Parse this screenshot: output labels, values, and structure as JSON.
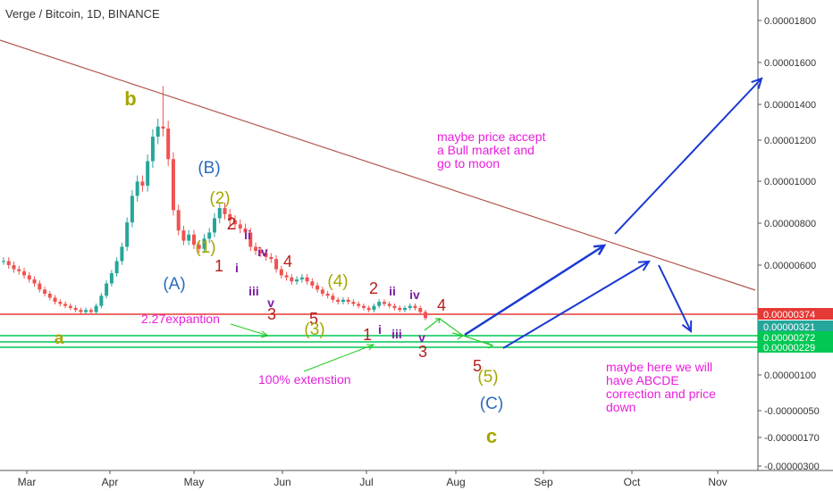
{
  "header": {
    "symbol": "Verge / Bitcoin",
    "interval": "1D",
    "exchange": "BINANCE"
  },
  "chart_data": {
    "type": "candlestick",
    "series_name": "Verge / Bitcoin",
    "x_ticks": [
      "Mar",
      "Apr",
      "May",
      "Jun",
      "Jul",
      "Aug",
      "Sep",
      "Oct",
      "Nov"
    ],
    "y_ticks": [
      "0.00001800",
      "0.00001600",
      "0.00001400",
      "0.00001200",
      "0.00001000",
      "0.00000800",
      "0.00000600",
      "0.00000100",
      "-0.00000050",
      "-0.00000170",
      "-0.00000300"
    ],
    "y_ticks_values": [
      1.8e-05,
      1.6e-05,
      1.4e-05,
      1.2e-05,
      1e-05,
      8e-06,
      6e-06,
      1e-06,
      -5e-07,
      -1.7e-06,
      -3e-06
    ],
    "price_tags": [
      {
        "label": "0.00000374",
        "color": "#e53935"
      },
      {
        "label": "0.00000321",
        "color": "#26a69a"
      },
      {
        "label": "0.00000272",
        "color": "#00c853"
      },
      {
        "label": "0.00000229",
        "color": "#00c853"
      }
    ],
    "close_series": [
      6.2e-06,
      6e-06,
      5.8e-06,
      5.7e-06,
      5.5e-06,
      5.3e-06,
      5.1e-06,
      4.8e-06,
      4.6e-06,
      4.4e-06,
      4.2e-06,
      4.1e-06,
      4e-06,
      3.9e-06,
      3.8e-06,
      3.7e-06,
      3.8e-06,
      3.7e-06,
      4e-06,
      4.5e-06,
      5.1e-06,
      5.6e-06,
      6.2e-06,
      6.9e-06,
      8.1e-06,
      9.4e-06,
      1.01e-05,
      9.9e-06,
      1.11e-05,
      1.23e-05,
      1.28e-05,
      1.27e-05,
      1.12e-05,
      8.7e-06,
      7.7e-06,
      7.2e-06,
      7.5e-06,
      7e-06,
      6.8e-06,
      7.3e-06,
      7.6e-06,
      8.3e-06,
      8.8e-06,
      8.5e-06,
      8.2e-06,
      8e-06,
      7.8e-06,
      7.6e-06,
      6.9e-06,
      6.7e-06,
      6.6e-06,
      6.4e-06,
      6.3e-06,
      5.8e-06,
      5.5e-06,
      5.4e-06,
      5.2e-06,
      5.3e-06,
      5.4e-06,
      5.2e-06,
      5e-06,
      4.8e-06,
      4.6e-06,
      4.5e-06,
      4.3e-06,
      4.2e-06,
      4.3e-06,
      4.2e-06,
      4.1e-06,
      4e-06,
      3.9e-06,
      3.8e-06,
      4e-06,
      4.2e-06,
      4.1e-06,
      4e-06,
      3.9e-06,
      3.8e-06,
      3.9e-06,
      4e-06,
      3.9e-06,
      3.7e-06,
      3.4e-06
    ],
    "annotations": [
      "b",
      "(B)",
      "(2)",
      "2",
      "(1)",
      "1",
      "ii",
      "i",
      "iv",
      "iii",
      "v",
      "3",
      "4",
      "(A)",
      "(4)",
      "5",
      "(3)",
      "2",
      "ii",
      "iv",
      "1",
      "i",
      "iii",
      "v",
      "3",
      "4",
      "5",
      "(5)",
      "(C)",
      "c",
      "a",
      "2.27expantion",
      "100% extenstion"
    ],
    "notes": [
      "maybe price accept\na Bull market and\ngo to moon",
      "maybe here we will\nhave ABCDE\ncorrection and price\ndown"
    ]
  }
}
